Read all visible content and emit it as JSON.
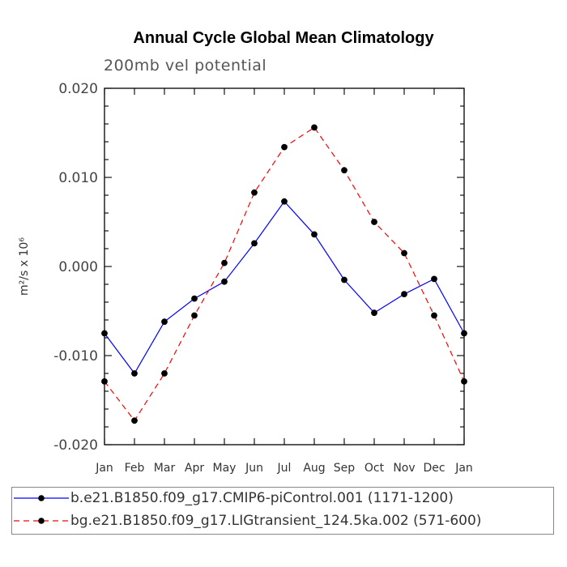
{
  "chart_data": {
    "type": "line",
    "title": "Annual Cycle Global Mean Climatology",
    "subtitle": "200mb vel potential",
    "ylabel": "m²/s x 10⁶",
    "xlabel": "",
    "categories": [
      "Jan",
      "Feb",
      "Mar",
      "Apr",
      "May",
      "Jun",
      "Jul",
      "Aug",
      "Sep",
      "Oct",
      "Nov",
      "Dec",
      "Jan"
    ],
    "ylim": [
      -0.02,
      0.02
    ],
    "yticks": [
      "0.020",
      "0.010",
      "0.000",
      "-0.010",
      "-0.020"
    ],
    "grid": false,
    "legend_position": "bottom",
    "series": [
      {
        "name": "b.e21.B1850.f09_g17.CMIP6-piControl.001 (1171-1200)",
        "color": "#0000ff",
        "line_style": "solid",
        "values": [
          -0.0075,
          -0.012,
          -0.0062,
          -0.0036,
          -0.0017,
          0.0026,
          0.0073,
          0.0036,
          -0.0015,
          -0.0052,
          -0.0031,
          -0.0014,
          -0.0075
        ]
      },
      {
        "name": "bg.e21.B1850.f09_g17.LIGtransient_124.5ka.002 (571-600)",
        "color": "#ff0000",
        "line_style": "dashed",
        "values": [
          -0.0129,
          -0.0173,
          -0.012,
          -0.0055,
          0.0004,
          0.0083,
          0.0134,
          0.0156,
          0.0108,
          0.005,
          0.0015,
          -0.0055,
          -0.0129
        ]
      }
    ]
  }
}
